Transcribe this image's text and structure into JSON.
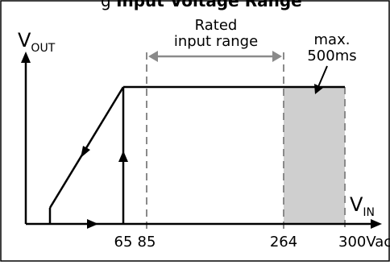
{
  "header": {
    "title_plain": "g ",
    "title_bold": "Input Voltage Range"
  },
  "axes": {
    "y_label_main": "V",
    "y_label_sub": "OUT",
    "x_label_main": "V",
    "x_label_sub": "IN"
  },
  "annotations": {
    "rated_line1": "Rated",
    "rated_line2": "input range",
    "max_line1": "max.",
    "max_line2": "500ms"
  },
  "ticks": [
    {
      "id": "tick-65",
      "label": "65",
      "value": 65
    },
    {
      "id": "tick-85",
      "label": "85",
      "value": 85
    },
    {
      "id": "tick-264",
      "label": "264",
      "value": 264
    },
    {
      "id": "tick-300",
      "label": "300Vac",
      "value": 300
    }
  ],
  "colors": {
    "line": "#000000",
    "dashed": "#8a8a8a",
    "shade": "#cfcfcf",
    "frame": "#000000"
  }
}
